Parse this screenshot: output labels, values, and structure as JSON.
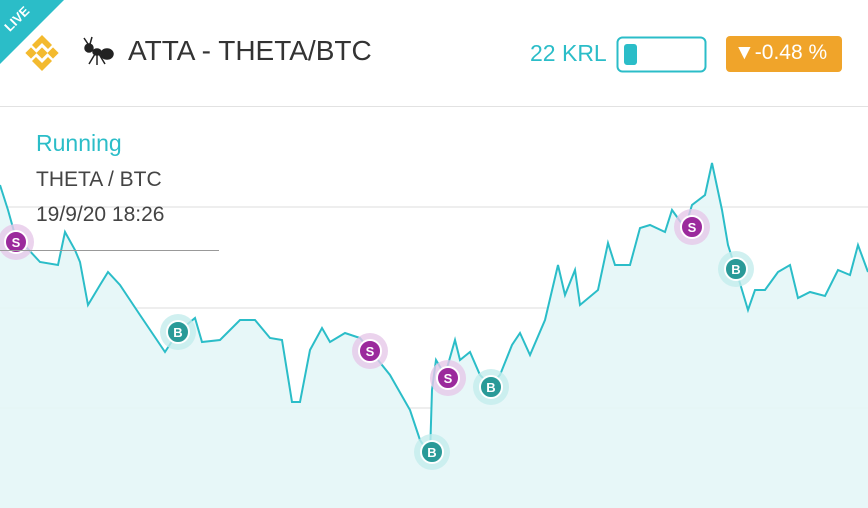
{
  "badge": "LIVE",
  "header": {
    "title": "ATTA - THETA/BTC",
    "balance": "22 KRL",
    "change": "▼-0.48 %"
  },
  "status": {
    "state": "Running",
    "pair": "THETA / BTC",
    "time": "19/9/20 18:26"
  },
  "markers": [
    {
      "label": "S"
    },
    {
      "label": "B"
    },
    {
      "label": "S"
    },
    {
      "label": "S"
    },
    {
      "label": "B"
    },
    {
      "label": "B"
    },
    {
      "label": "S"
    },
    {
      "label": "B"
    }
  ]
}
